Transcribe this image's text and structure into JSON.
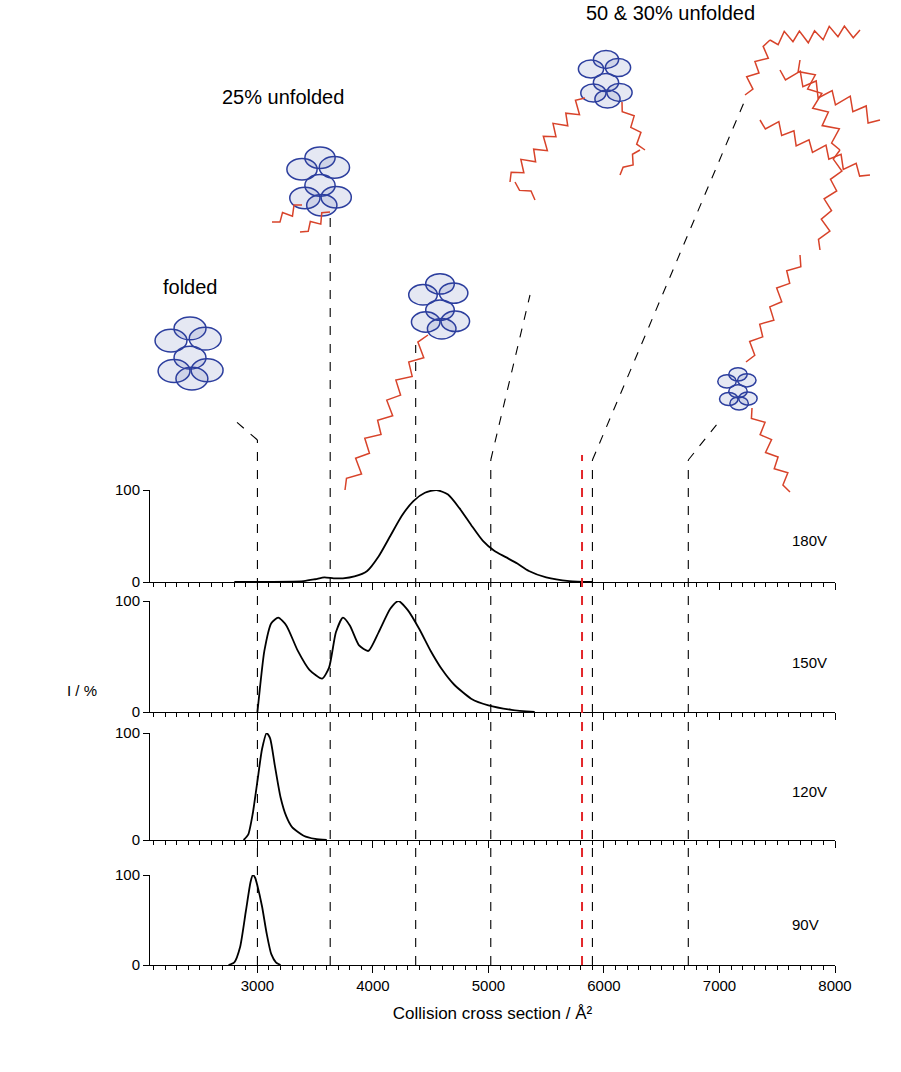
{
  "chart_data": {
    "type": "line",
    "x_label": "Collision cross section / Å²",
    "y_label": "I / %",
    "xlim": [
      2070,
      8000
    ],
    "xticks": [
      3000,
      4000,
      5000,
      6000,
      7000,
      8000
    ],
    "ylim": [
      0,
      100
    ],
    "yticks": [
      0,
      100
    ],
    "grid": false,
    "series": [
      {
        "name": "180V",
        "color": "#000000",
        "x": [
          2800,
          3400,
          3500,
          3580,
          3660,
          3740,
          3840,
          3950,
          4050,
          4150,
          4250,
          4350,
          4450,
          4550,
          4650,
          4750,
          4850,
          4950,
          5050,
          5150,
          5250,
          5350,
          5500,
          5700,
          5900
        ],
        "values": [
          0,
          1,
          3,
          5,
          4,
          4,
          6,
          12,
          28,
          50,
          72,
          88,
          97,
          100,
          95,
          80,
          62,
          45,
          34,
          27,
          20,
          12,
          5,
          1,
          0
        ]
      },
      {
        "name": "150V",
        "color": "#000000",
        "x": [
          3000,
          3020,
          3060,
          3120,
          3180,
          3250,
          3350,
          3450,
          3560,
          3620,
          3680,
          3740,
          3800,
          3880,
          3960,
          4050,
          4150,
          4220,
          4300,
          4400,
          4500,
          4600,
          4700,
          4850,
          5000,
          5200,
          5400
        ],
        "values": [
          0,
          20,
          55,
          80,
          85,
          78,
          55,
          38,
          30,
          40,
          72,
          85,
          78,
          60,
          55,
          72,
          93,
          100,
          92,
          75,
          55,
          38,
          25,
          12,
          6,
          2,
          0
        ]
      },
      {
        "name": "120V",
        "color": "#000000",
        "x": [
          2880,
          2920,
          2960,
          3000,
          3040,
          3080,
          3110,
          3150,
          3200,
          3250,
          3300,
          3400,
          3500,
          3600
        ],
        "values": [
          0,
          5,
          25,
          55,
          85,
          100,
          95,
          70,
          40,
          22,
          12,
          4,
          1,
          0
        ]
      },
      {
        "name": "90V",
        "color": "#000000",
        "x": [
          2750,
          2800,
          2850,
          2900,
          2940,
          2960,
          2980,
          3000,
          3040,
          3080,
          3120,
          3160,
          3200
        ],
        "values": [
          0,
          3,
          20,
          60,
          92,
          100,
          97,
          88,
          65,
          35,
          12,
          3,
          0
        ]
      }
    ],
    "reference_lines": [
      {
        "x": 3000,
        "color": "#000000",
        "line_style": "dashed"
      },
      {
        "x": 3630,
        "color": "#000000",
        "line_style": "dashed"
      },
      {
        "x": 4370,
        "color": "#000000",
        "line_style": "dashed"
      },
      {
        "x": 5020,
        "color": "#000000",
        "line_style": "dashed"
      },
      {
        "x": 5810,
        "color": "#e3262a",
        "line_style": "dashed"
      },
      {
        "x": 5900,
        "color": "#000000",
        "line_style": "dashed"
      },
      {
        "x": 6730,
        "color": "#000000",
        "line_style": "dashed"
      }
    ],
    "annotations": [
      {
        "text": "folded",
        "x": 3000
      },
      {
        "text": "25% unfolded",
        "x": 3630
      },
      {
        "text": "50 & 30% unfolded",
        "x": 5020
      }
    ]
  }
}
